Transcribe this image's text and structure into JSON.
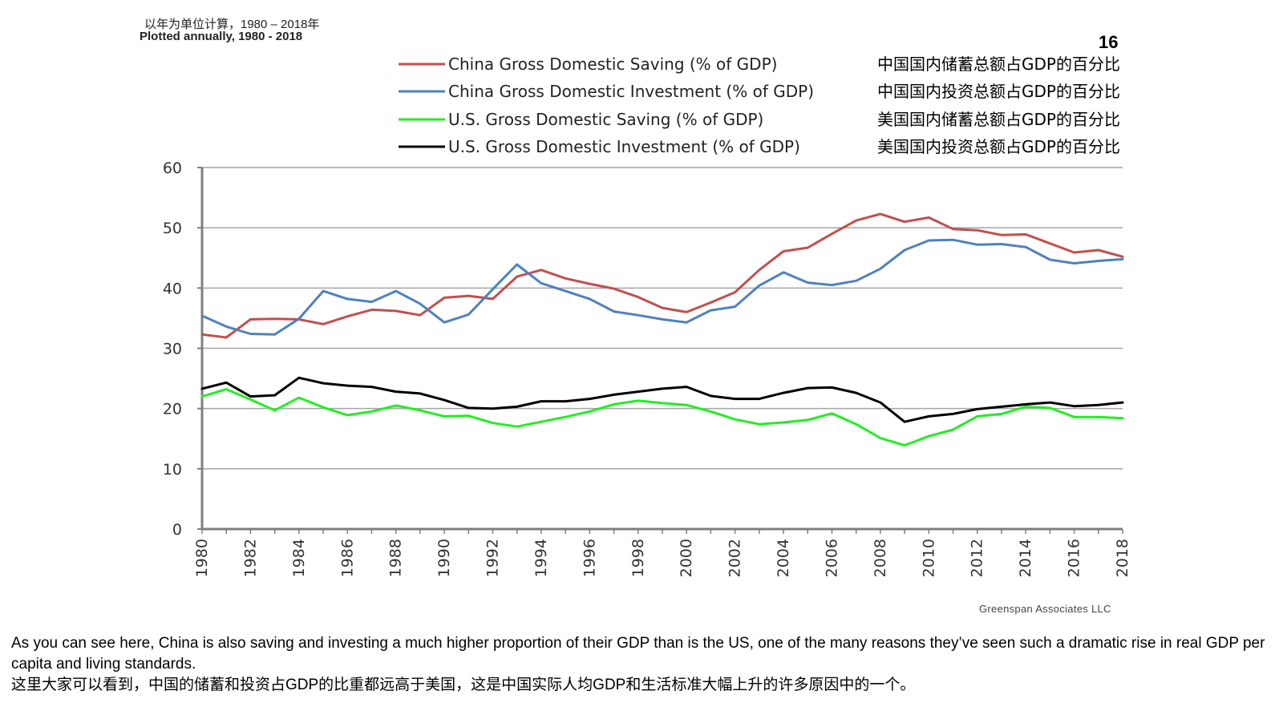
{
  "subtitle_cn": "以年为单位计算，1980 – 2018年",
  "subtitle_en": "Plotted annually, 1980 - 2018",
  "page_number": "16",
  "credit": "Greenspan Associates LLC",
  "caption_en": "As you can see here, China is also saving and investing a much higher proportion of their GDP than is the US, one of the many reasons they’ve seen such a dramatic rise in real GDP per capita and living standards.",
  "caption_cn": "这里大家可以看到，中国的储蓄和投资占GDP的比重都远高于美国，这是中国实际人均GDP和生活标准大幅上升的许多原因中的一个。",
  "chart_data": {
    "type": "line",
    "title": "",
    "xlabel": "",
    "ylabel": "",
    "x": [
      1980,
      1981,
      1982,
      1983,
      1984,
      1985,
      1986,
      1987,
      1988,
      1989,
      1990,
      1991,
      1992,
      1993,
      1994,
      1995,
      1996,
      1997,
      1998,
      1999,
      2000,
      2001,
      2002,
      2003,
      2004,
      2005,
      2006,
      2007,
      2008,
      2009,
      2010,
      2011,
      2012,
      2013,
      2014,
      2015,
      2016,
      2017,
      2018
    ],
    "xticks": [
      "1980",
      "1982",
      "1984",
      "1986",
      "1988",
      "1990",
      "1992",
      "1994",
      "1996",
      "1998",
      "2000",
      "2002",
      "2004",
      "2006",
      "2008",
      "2010",
      "2012",
      "2014",
      "2016",
      "2018"
    ],
    "ylim": [
      0,
      60
    ],
    "yticks": [
      0,
      10,
      20,
      30,
      40,
      50,
      60
    ],
    "grid": true,
    "legend_position": "top-right",
    "series": [
      {
        "name": "China Gross Domestic Saving (% of GDP)",
        "name_cn": "中国国内储蓄总额占GDP的百分比",
        "color": "#c0504d",
        "values": [
          32.3,
          31.8,
          34.8,
          34.9,
          34.8,
          34.0,
          35.3,
          36.4,
          36.2,
          35.5,
          38.4,
          38.7,
          38.2,
          41.9,
          43.0,
          41.6,
          40.7,
          39.9,
          38.5,
          36.7,
          36.0,
          37.6,
          39.3,
          43.0,
          46.1,
          46.7,
          49.0,
          51.2,
          52.3,
          51.0,
          51.7,
          49.8,
          49.6,
          48.8,
          48.9,
          47.4,
          45.9,
          46.3,
          45.2
        ]
      },
      {
        "name": "China Gross Domestic Investment (% of GDP)",
        "name_cn": "中国国内投资总额占GDP的百分比",
        "color": "#4f81bd",
        "values": [
          35.4,
          33.6,
          32.4,
          32.3,
          34.9,
          39.5,
          38.2,
          37.7,
          39.5,
          37.4,
          34.3,
          35.6,
          39.8,
          43.9,
          40.8,
          39.5,
          38.2,
          36.1,
          35.5,
          34.8,
          34.3,
          36.3,
          36.9,
          40.4,
          42.6,
          40.9,
          40.5,
          41.2,
          43.2,
          46.3,
          47.9,
          48.0,
          47.2,
          47.3,
          46.8,
          44.7,
          44.1,
          44.5,
          44.8
        ]
      },
      {
        "name": "U.S. Gross Domestic Saving (% of GDP)",
        "name_cn": "美国国内储蓄总额占GDP的百分比",
        "color": "#22ee22",
        "values": [
          22.0,
          23.2,
          21.5,
          19.7,
          21.8,
          20.2,
          18.9,
          19.5,
          20.5,
          19.7,
          18.7,
          18.8,
          17.6,
          17.0,
          17.8,
          18.6,
          19.5,
          20.7,
          21.3,
          20.9,
          20.6,
          19.5,
          18.2,
          17.4,
          17.7,
          18.1,
          19.2,
          17.4,
          15.1,
          13.9,
          15.4,
          16.5,
          18.7,
          19.1,
          20.3,
          20.1,
          18.6,
          18.6,
          18.4
        ]
      },
      {
        "name": "U.S. Gross Domestic Investment (% of GDP)",
        "name_cn": "美国国内投资总额占GDP的百分比",
        "color": "#000000",
        "values": [
          23.3,
          24.3,
          22.0,
          22.2,
          25.1,
          24.2,
          23.8,
          23.6,
          22.8,
          22.5,
          21.4,
          20.1,
          20.0,
          20.3,
          21.2,
          21.2,
          21.6,
          22.3,
          22.8,
          23.3,
          23.6,
          22.1,
          21.6,
          21.6,
          22.6,
          23.4,
          23.5,
          22.6,
          21.0,
          17.8,
          18.7,
          19.1,
          19.9,
          20.3,
          20.7,
          21.0,
          20.4,
          20.6,
          21.0
        ]
      }
    ]
  }
}
